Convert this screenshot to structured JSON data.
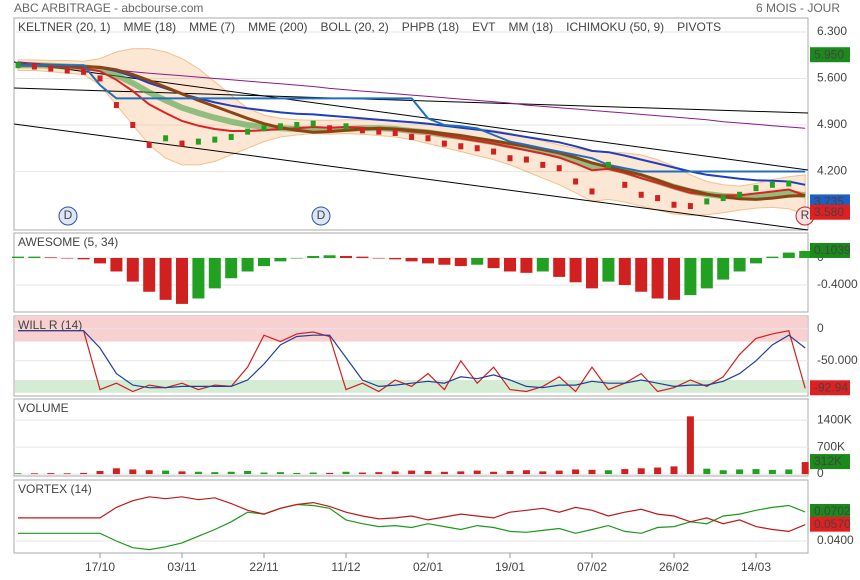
{
  "header": {
    "title": "ABC ARBITRAGE - abcbourse.com",
    "period": "6 MOIS - JOUR"
  },
  "chart_data": [
    {
      "type": "price",
      "ylim": [
        3.32,
        6.51
      ],
      "yticks": [
        {
          "value": 6.3,
          "label": "6.300"
        },
        {
          "value": 5.6,
          "label": "5.600"
        },
        {
          "value": 4.9,
          "label": "4.900"
        },
        {
          "value": 4.2,
          "label": "4.200"
        }
      ],
      "grid": true,
      "up_color": "#22a022",
      "down_color": "#d02020",
      "values": [
        5.8,
        5.78,
        5.75,
        5.72,
        5.7,
        5.6,
        5.2,
        4.9,
        4.6,
        4.7,
        4.62,
        4.65,
        4.68,
        4.72,
        4.8,
        4.85,
        4.88,
        4.9,
        4.92,
        4.85,
        4.88,
        4.82,
        4.8,
        4.78,
        4.72,
        4.7,
        4.62,
        4.58,
        4.55,
        4.5,
        4.4,
        4.38,
        4.3,
        4.25,
        4.05,
        3.9,
        4.3,
        4.0,
        3.85,
        3.8,
        3.7,
        3.68,
        3.75,
        3.8,
        3.85,
        3.95,
        4.0,
        4.02,
        3.58
      ],
      "overlays": [
        {
          "name": "KELTNER (20, 1)",
          "color": "#3a9a3a",
          "values": [
            5.8,
            5.8,
            5.79,
            5.78,
            5.77,
            5.74,
            5.65,
            5.53,
            5.39,
            5.27,
            5.16,
            5.08,
            5.01,
            4.95,
            4.9,
            4.87,
            4.85,
            4.84,
            4.83,
            4.83,
            4.84,
            4.85,
            4.85,
            4.84,
            4.81,
            4.79,
            4.75,
            4.72,
            4.68,
            4.64,
            4.59,
            4.55,
            4.5,
            4.45,
            4.37,
            4.28,
            4.26,
            4.2,
            4.13,
            4.05,
            3.97,
            3.9,
            3.86,
            3.83,
            3.82,
            3.83,
            3.85,
            3.88,
            3.84
          ]
        },
        {
          "name": "MME (18)",
          "color": "#1f3fbf",
          "values": [
            5.8,
            5.8,
            5.79,
            5.79,
            5.78,
            5.76,
            5.71,
            5.63,
            5.53,
            5.45,
            5.37,
            5.3,
            5.24,
            5.19,
            5.15,
            5.12,
            5.09,
            5.07,
            5.06,
            5.04,
            5.02,
            5.0,
            4.98,
            4.96,
            4.94,
            4.92,
            4.89,
            4.86,
            4.83,
            4.8,
            4.76,
            4.72,
            4.68,
            4.64,
            4.58,
            4.51,
            4.49,
            4.44,
            4.38,
            4.32,
            4.26,
            4.2,
            4.15,
            4.12,
            4.09,
            4.07,
            4.06,
            4.05,
            4.0
          ]
        },
        {
          "name": "MME (7)",
          "color": "#e02020",
          "values": [
            5.8,
            5.8,
            5.78,
            5.77,
            5.75,
            5.71,
            5.58,
            5.41,
            5.21,
            5.08,
            4.96,
            4.89,
            4.84,
            4.81,
            4.81,
            4.82,
            4.84,
            4.85,
            4.87,
            4.86,
            4.87,
            4.86,
            4.84,
            4.83,
            4.8,
            4.78,
            4.74,
            4.7,
            4.66,
            4.62,
            4.57,
            4.52,
            4.47,
            4.41,
            4.32,
            4.22,
            4.24,
            4.18,
            4.1,
            4.03,
            3.95,
            3.88,
            3.85,
            3.84,
            3.84,
            3.87,
            3.9,
            3.93,
            3.84
          ]
        },
        {
          "name": "MME (200)",
          "color": "#8b1a8b",
          "values": [
            5.85,
            5.83,
            5.81,
            5.79,
            5.77,
            5.75,
            5.73,
            5.7,
            5.68,
            5.66,
            5.64,
            5.62,
            5.6,
            5.58,
            5.56,
            5.54,
            5.52,
            5.5,
            5.48,
            5.45,
            5.43,
            5.41,
            5.39,
            5.37,
            5.35,
            5.33,
            5.31,
            5.29,
            5.27,
            5.25,
            5.23,
            5.2,
            5.18,
            5.16,
            5.14,
            5.12,
            5.1,
            5.08,
            5.06,
            5.04,
            5.02,
            5.0,
            4.98,
            4.95,
            4.93,
            4.91,
            4.89,
            4.87,
            4.85
          ]
        },
        {
          "name": "BOLL (20, 2)",
          "color": "#f0a050",
          "upper": [
            5.88,
            5.88,
            5.87,
            5.87,
            5.86,
            5.9,
            6.0,
            6.05,
            6.05,
            6.0,
            5.9,
            5.75,
            5.55,
            5.35,
            5.15,
            5.05,
            5.0,
            4.98,
            4.97,
            4.97,
            4.98,
            4.98,
            4.97,
            4.96,
            4.95,
            4.93,
            4.9,
            4.88,
            4.85,
            4.82,
            4.78,
            4.72,
            4.66,
            4.6,
            4.55,
            4.5,
            4.5,
            4.48,
            4.45,
            4.38,
            4.28,
            4.15,
            4.05,
            4.0,
            3.98,
            4.02,
            4.08,
            4.12,
            4.15
          ],
          "lower": [
            5.72,
            5.72,
            5.7,
            5.68,
            5.66,
            5.5,
            5.2,
            4.9,
            4.6,
            4.4,
            4.3,
            4.3,
            4.35,
            4.45,
            4.55,
            4.65,
            4.72,
            4.75,
            4.77,
            4.76,
            4.77,
            4.76,
            4.74,
            4.72,
            4.68,
            4.62,
            4.56,
            4.5,
            4.44,
            4.38,
            4.3,
            4.2,
            4.1,
            4.0,
            3.88,
            3.75,
            3.78,
            3.74,
            3.68,
            3.62,
            3.56,
            3.54,
            3.55,
            3.58,
            3.62,
            3.65,
            3.66,
            3.64,
            3.55
          ]
        },
        {
          "name": "PHPB (18)",
          "color": "#1a7a1a"
        },
        {
          "name": "EVT",
          "color": "#1a9a1a"
        },
        {
          "name": "MM (18)",
          "color": "#8b4513",
          "values": [
            5.8,
            5.8,
            5.8,
            5.79,
            5.78,
            5.77,
            5.73,
            5.66,
            5.57,
            5.47,
            5.37,
            5.27,
            5.18,
            5.09,
            5.0,
            4.92,
            4.86,
            4.82,
            4.79,
            4.8,
            4.82,
            4.84,
            4.85,
            4.84,
            4.82,
            4.8,
            4.77,
            4.74,
            4.7,
            4.66,
            4.62,
            4.58,
            4.53,
            4.48,
            4.41,
            4.33,
            4.27,
            4.21,
            4.15,
            4.07,
            3.98,
            3.92,
            3.86,
            3.82,
            3.79,
            3.78,
            3.8,
            3.83,
            3.84
          ]
        },
        {
          "name": "ICHIMOKU (50, 9)",
          "color": "#1f6fbf",
          "values": [
            5.8,
            5.8,
            5.8,
            5.8,
            5.8,
            5.5,
            5.3,
            5.3,
            5.3,
            5.3,
            5.3,
            5.3,
            5.3,
            5.3,
            5.3,
            5.3,
            5.3,
            5.3,
            5.3,
            5.3,
            5.3,
            5.3,
            5.3,
            5.3,
            5.3,
            5.0,
            4.9,
            4.88,
            4.85,
            4.75,
            4.65,
            4.6,
            4.55,
            4.5,
            4.45,
            4.4,
            4.3,
            4.25,
            4.2,
            4.2,
            4.2,
            4.2,
            4.2,
            4.2,
            4.2,
            4.2,
            4.2,
            4.2,
            4.2
          ]
        },
        {
          "name": "PIVOTS",
          "color": "#444444"
        }
      ],
      "value_labels": [
        {
          "value": 5.95,
          "label": "5.950",
          "color": "#1a8a1a"
        },
        {
          "value": 3.735,
          "label": "3.735",
          "color": "#1f5fbf"
        },
        {
          "value": 3.58,
          "label": "3.580",
          "color": "#e02020"
        }
      ],
      "markers": [
        "D",
        "D",
        "R"
      ]
    },
    {
      "type": "bar",
      "title": "AWESOME (5, 34)",
      "ylim": [
        -0.8,
        0.37
      ],
      "yticks": [
        0,
        {
          "value": -0.4,
          "label": "-0.4000"
        }
      ],
      "up_color": "#22a022",
      "down_color": "#d02020",
      "values": [
        0.02,
        0.02,
        0.01,
        0,
        -0.02,
        -0.08,
        -0.2,
        -0.35,
        -0.5,
        -0.62,
        -0.68,
        -0.6,
        -0.45,
        -0.3,
        -0.2,
        -0.12,
        -0.05,
        0,
        0.03,
        0.04,
        0.03,
        0.02,
        0,
        -0.02,
        -0.05,
        -0.08,
        -0.1,
        -0.12,
        -0.1,
        -0.15,
        -0.2,
        -0.22,
        -0.2,
        -0.28,
        -0.36,
        -0.45,
        -0.35,
        -0.4,
        -0.5,
        -0.6,
        -0.62,
        -0.55,
        -0.45,
        -0.32,
        -0.2,
        -0.08,
        0.02,
        0.08,
        0.1039
      ],
      "value_labels": [
        {
          "value": 0.1039,
          "label": "0.1039",
          "color": "#1a8a1a"
        }
      ]
    },
    {
      "type": "line",
      "title": "WILL R (14)",
      "ylim": [
        -105,
        20
      ],
      "yticks": [
        0,
        {
          "value": -50,
          "label": "-50.000"
        }
      ],
      "zones": [
        {
          "from": -20,
          "to": 20,
          "color": "#f8d0d0"
        },
        {
          "from": -100,
          "to": -80,
          "color": "#d4ecd4"
        }
      ],
      "series": [
        {
          "color": "#d02020",
          "values": [
            -3,
            -3,
            -3,
            -3,
            -3,
            -95,
            -85,
            -98,
            -88,
            -92,
            -85,
            -95,
            -88,
            -90,
            -60,
            -10,
            -20,
            -8,
            -5,
            -12,
            -95,
            -85,
            -98,
            -80,
            -90,
            -70,
            -95,
            -50,
            -85,
            -60,
            -95,
            -98,
            -90,
            -75,
            -98,
            -60,
            -95,
            -85,
            -70,
            -98,
            -92,
            -80,
            -90,
            -75,
            -40,
            -15,
            -8,
            -3,
            -92.94
          ]
        },
        {
          "color": "#1f3f9f",
          "values": [
            -3,
            -3,
            -3,
            -3,
            -3,
            -30,
            -70,
            -88,
            -92,
            -92,
            -90,
            -90,
            -90,
            -90,
            -80,
            -55,
            -25,
            -12,
            -10,
            -10,
            -45,
            -80,
            -90,
            -88,
            -85,
            -82,
            -85,
            -75,
            -78,
            -72,
            -80,
            -90,
            -92,
            -88,
            -88,
            -82,
            -85,
            -85,
            -80,
            -85,
            -90,
            -88,
            -88,
            -82,
            -70,
            -50,
            -25,
            -10,
            -30
          ]
        }
      ],
      "value_labels": [
        {
          "value": -92.94,
          "label": "-92.94",
          "color": "#e02020"
        }
      ]
    },
    {
      "type": "volume",
      "title": "VOLUME",
      "ylim": [
        -50000,
        1950000
      ],
      "yticks": [
        {
          "value": 1400000,
          "label": "1400K"
        },
        {
          "value": 700000,
          "label": "700K"
        },
        0
      ],
      "up_color": "#22a022",
      "down_color": "#d02020",
      "values": [
        20000,
        20000,
        25000,
        20000,
        30000,
        80000,
        150000,
        120000,
        100000,
        90000,
        70000,
        60000,
        50000,
        60000,
        80000,
        40000,
        50000,
        30000,
        40000,
        30000,
        60000,
        40000,
        50000,
        70000,
        90000,
        80000,
        60000,
        70000,
        90000,
        60000,
        80000,
        100000,
        70000,
        90000,
        120000,
        110000,
        100000,
        130000,
        150000,
        170000,
        200000,
        1500000,
        140000,
        100000,
        120000,
        130000,
        110000,
        120000,
        312000
      ],
      "value_labels": [
        {
          "value": 312000,
          "label": "312K",
          "color": "#1a8a1a"
        }
      ]
    },
    {
      "type": "line",
      "title": "VORTEX (14)",
      "ylim": [
        0.0275,
        0.1035
      ],
      "yticks": [
        {
          "value": 0.04,
          "label": "0.0400"
        }
      ],
      "categories": [
        null,
        null,
        null,
        null,
        null,
        "17/10",
        null,
        null,
        null,
        null,
        "03/11",
        null,
        null,
        null,
        null,
        "22/11",
        null,
        null,
        null,
        null,
        "11/12",
        null,
        null,
        null,
        null,
        "02/01",
        null,
        null,
        null,
        null,
        "19/01",
        null,
        null,
        null,
        null,
        "07/02",
        null,
        null,
        null,
        null,
        "26/02",
        null,
        null,
        null,
        null,
        "14/03",
        null,
        null,
        null
      ],
      "series": [
        {
          "color": "#1a9a1a",
          "values": [
            0.048,
            0.048,
            0.048,
            0.048,
            0.048,
            0.048,
            0.04,
            0.033,
            0.031,
            0.034,
            0.038,
            0.045,
            0.052,
            0.06,
            0.07,
            0.068,
            0.074,
            0.078,
            0.077,
            0.074,
            0.062,
            0.058,
            0.055,
            0.056,
            0.054,
            0.058,
            0.055,
            0.052,
            0.056,
            0.054,
            0.05,
            0.049,
            0.051,
            0.053,
            0.048,
            0.052,
            0.056,
            0.05,
            0.048,
            0.054,
            0.055,
            0.06,
            0.058,
            0.066,
            0.068,
            0.072,
            0.075,
            0.077,
            0.0702
          ]
        },
        {
          "color": "#c01818",
          "values": [
            0.064,
            0.064,
            0.064,
            0.064,
            0.064,
            0.064,
            0.075,
            0.082,
            0.086,
            0.084,
            0.086,
            0.083,
            0.085,
            0.079,
            0.072,
            0.068,
            0.074,
            0.078,
            0.08,
            0.076,
            0.07,
            0.066,
            0.063,
            0.064,
            0.066,
            0.062,
            0.065,
            0.068,
            0.066,
            0.064,
            0.07,
            0.072,
            0.074,
            0.07,
            0.075,
            0.072,
            0.066,
            0.07,
            0.073,
            0.068,
            0.066,
            0.06,
            0.064,
            0.058,
            0.062,
            0.055,
            0.052,
            0.05,
            0.057
          ]
        }
      ],
      "value_labels": [
        {
          "value": 0.0702,
          "label": "0.0702",
          "color": "#1a8a1a"
        },
        {
          "value": 0.057,
          "label": "0.0570",
          "color": "#e02020"
        }
      ]
    }
  ]
}
